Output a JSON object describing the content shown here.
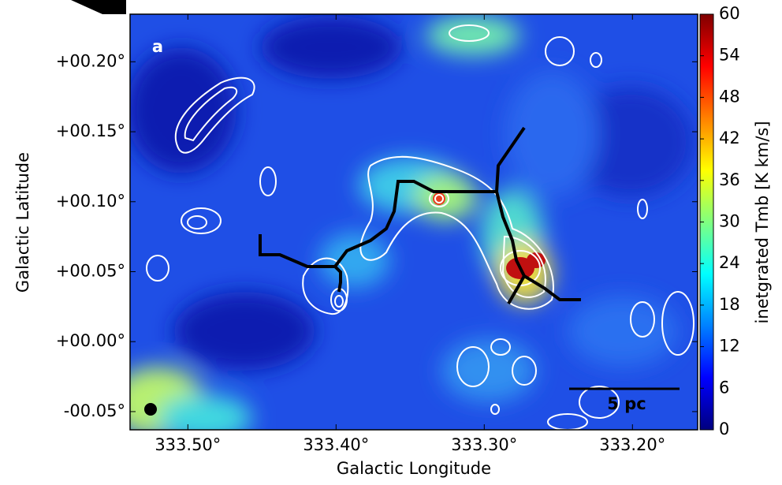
{
  "chart_data": {
    "type": "map",
    "panel_label": "a",
    "xlabel": "Galactic Longitude",
    "ylabel": "Galactic Latitude",
    "xlim": [
      333.539,
      333.156
    ],
    "ylim": [
      -0.063,
      0.234
    ],
    "xticks": [
      {
        "value": 333.5,
        "label": "333.50°"
      },
      {
        "value": 333.4,
        "label": "333.40°"
      },
      {
        "value": 333.3,
        "label": "333.30°"
      },
      {
        "value": 333.2,
        "label": "333.20°"
      }
    ],
    "yticks": [
      {
        "value": -0.05,
        "label": "-00.05°"
      },
      {
        "value": 0.0,
        "label": "+00.00°"
      },
      {
        "value": 0.05,
        "label": "+00.05°"
      },
      {
        "value": 0.1,
        "label": "+00.10°"
      },
      {
        "value": 0.15,
        "label": "+00.15°"
      },
      {
        "value": 0.2,
        "label": "+00.20°"
      }
    ],
    "colorbar": {
      "label": "inetgrated Tmb [K km/s]",
      "lim": [
        0,
        60
      ],
      "ticks": [
        0,
        6,
        12,
        18,
        24,
        30,
        36,
        42,
        48,
        54,
        60
      ],
      "colormap": [
        "#00007f",
        "#0000ff",
        "#0080ff",
        "#00ffff",
        "#80ff80",
        "#ffff00",
        "#ff8000",
        "#ff0000",
        "#7f0000"
      ]
    },
    "scale_bar": "5 pc"
  }
}
